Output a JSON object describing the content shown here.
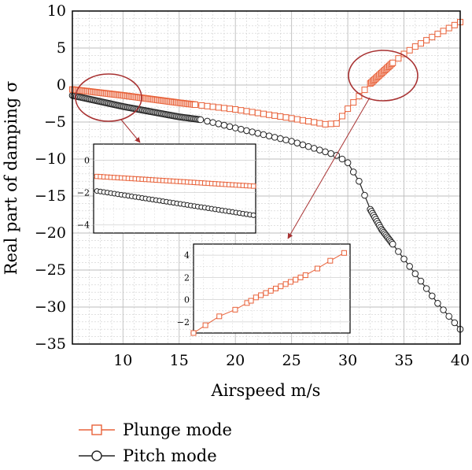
{
  "chart_data": {
    "type": "line",
    "title": "",
    "xlabel": "Airspeed m/s",
    "ylabel": "Real part of damping σ",
    "xlim": [
      5.5,
      40
    ],
    "ylim": [
      -35,
      10
    ],
    "xticks": [
      10,
      15,
      20,
      25,
      30,
      35,
      40
    ],
    "yticks": [
      10,
      5,
      0,
      -5,
      -10,
      -15,
      -20,
      -25,
      -30,
      -35
    ],
    "grid": true,
    "legend_position": "bottom-left",
    "colors": {
      "plunge": "#e8623a",
      "pitch": "#222222",
      "annotation": "#a83232"
    },
    "series": [
      {
        "name": "Plunge mode",
        "marker": "square",
        "x": [
          5.5,
          10,
          15,
          20,
          25,
          28,
          29,
          30,
          32,
          32.5,
          33,
          33.5,
          34,
          35,
          36,
          38,
          40
        ],
        "y": [
          -0.6,
          -1.4,
          -2.4,
          -3.3,
          -4.5,
          -5.3,
          -5.2,
          -3.2,
          0.2,
          0.9,
          1.6,
          2.3,
          3.0,
          4.2,
          5.2,
          6.9,
          8.5
        ]
      },
      {
        "name": "Pitch mode",
        "marker": "circle",
        "x": [
          5.5,
          10,
          15,
          17,
          20,
          25,
          29,
          30,
          31,
          32,
          33,
          34,
          35,
          36,
          38,
          40
        ],
        "y": [
          -1.4,
          -2.9,
          -4.3,
          -4.7,
          -5.8,
          -7.6,
          -9.5,
          -10.5,
          -13.0,
          -16.8,
          -19.5,
          -21.5,
          -23.5,
          -25.5,
          -29.5,
          -33.0
        ]
      }
    ],
    "insets": [
      {
        "xlim": [
          5.5,
          20
        ],
        "ylim": [
          -4.5,
          1
        ],
        "yticks": [
          0,
          -2,
          -4
        ],
        "plunge_y": [
          -1.0,
          -1.6
        ],
        "pitch_y": [
          -1.9,
          -3.4
        ]
      },
      {
        "xlim": [
          10,
          25.8
        ],
        "ylim": [
          -3,
          5
        ],
        "yticks": [
          4,
          2,
          0,
          -2
        ],
        "plunge_x": [
          10,
          11.2,
          12.6,
          14.2,
          15.4,
          15.8,
          16.3,
          16.8,
          17.3,
          17.8,
          18.3,
          18.8,
          19.3,
          19.8,
          20.3,
          20.8,
          21.3,
          22.5,
          23.8,
          25.2
        ],
        "plunge_y": [
          -3.0,
          -2.3,
          -1.5,
          -0.9,
          -0.3,
          -0.1,
          0.2,
          0.4,
          0.6,
          0.8,
          1.0,
          1.2,
          1.4,
          1.6,
          1.8,
          2.0,
          2.2,
          2.8,
          3.5,
          4.2
        ]
      }
    ]
  }
}
